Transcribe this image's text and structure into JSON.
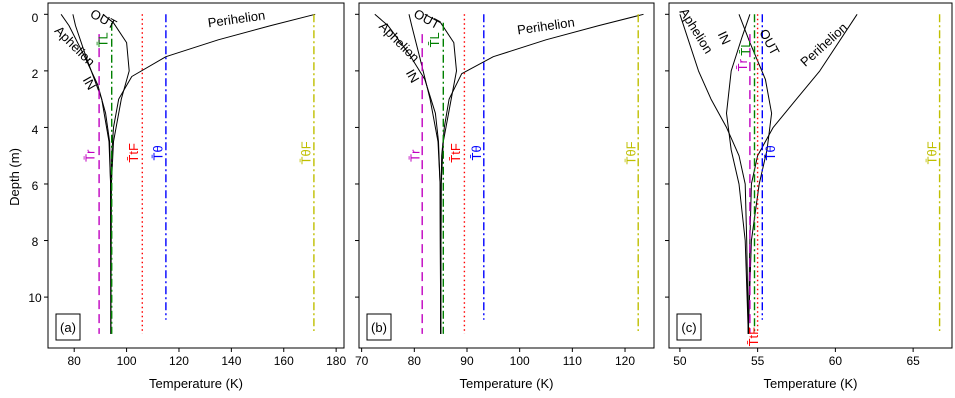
{
  "figure": {
    "y_axis_label": "Depth (m)",
    "y_ticks": [
      "0",
      "2",
      "4",
      "6",
      "8",
      "10"
    ]
  },
  "colors": {
    "curve": "#000000",
    "tr": "#c000c0",
    "tL": "#008000",
    "tF": "#ff0000",
    "theta": "#0000ff",
    "thetaF": "#bfbf00"
  },
  "chart_data": [
    {
      "type": "line",
      "panel_label": "(a)",
      "xlabel": "Temperature (K)",
      "ylabel": "Depth (m)",
      "xlim": [
        70,
        183
      ],
      "ylim": [
        11.8,
        -0.4
      ],
      "y_inverted": true,
      "x_ticks": [
        80,
        100,
        120,
        140,
        160,
        180
      ],
      "y_ticks": [
        0,
        2,
        4,
        6,
        8,
        10
      ],
      "grid": false,
      "series": [
        {
          "name": "Perihelion",
          "style": "solid",
          "color": "#000000",
          "points": [
            [
              94.0,
              11.3
            ],
            [
              94.1,
              6.0
            ],
            [
              94.3,
              5.0
            ],
            [
              95.0,
              4.0
            ],
            [
              97.0,
              3.0
            ],
            [
              102.0,
              2.2
            ],
            [
              115.0,
              1.5
            ],
            [
              135.0,
              0.9
            ],
            [
              155.0,
              0.4
            ],
            [
              172.0,
              0.0
            ]
          ]
        },
        {
          "name": "Aphelion",
          "style": "solid",
          "color": "#000000",
          "points": [
            [
              94.0,
              11.3
            ],
            [
              93.9,
              6.0
            ],
            [
              93.5,
              4.5
            ],
            [
              92.0,
              3.5
            ],
            [
              89.0,
              2.5
            ],
            [
              84.0,
              1.5
            ],
            [
              78.0,
              0.4
            ],
            [
              75.0,
              0.0
            ]
          ]
        },
        {
          "name": "OUT",
          "style": "solid",
          "color": "#000000",
          "points": [
            [
              94.0,
              11.3
            ],
            [
              94.2,
              6.0
            ],
            [
              95.0,
              4.5
            ],
            [
              98.0,
              3.0
            ],
            [
              101.0,
              2.0
            ],
            [
              100.0,
              1.0
            ],
            [
              95.0,
              0.3
            ],
            [
              91.0,
              0.0
            ]
          ]
        },
        {
          "name": "IN",
          "style": "solid",
          "color": "#000000",
          "points": [
            [
              94.0,
              11.3
            ],
            [
              93.9,
              6.0
            ],
            [
              93.3,
              4.5
            ],
            [
              90.5,
              3.0
            ],
            [
              84.5,
              1.5
            ],
            [
              80.5,
              0.4
            ],
            [
              79.5,
              0.0
            ]
          ]
        },
        {
          "name": "T̄r",
          "style": "dashed",
          "color": "#c000c0",
          "points": [
            [
              89.5,
              0.7
            ],
            [
              89.5,
              11.3
            ]
          ]
        },
        {
          "name": "T̄L",
          "style": "dashdot",
          "color": "#008000",
          "points": [
            [
              94.3,
              0.3
            ],
            [
              94.3,
              11.3
            ]
          ]
        },
        {
          "name": "T̄tF",
          "style": "dotted",
          "color": "#ff0000",
          "points": [
            [
              106.0,
              0.0
            ],
            [
              106.0,
              11.3
            ]
          ]
        },
        {
          "name": "T̄θ",
          "style": "dashdot",
          "color": "#0000ff",
          "points": [
            [
              115.0,
              0.0
            ],
            [
              115.0,
              10.8
            ]
          ]
        },
        {
          "name": "T̄θF",
          "style": "dashdot",
          "color": "#bfbf00",
          "points": [
            [
              171.5,
              0.0
            ],
            [
              171.5,
              11.2
            ]
          ]
        }
      ],
      "annotations": [
        {
          "text": "OUT",
          "x": 91,
          "y": 0.2,
          "rotate": 28
        },
        {
          "text": "Aphelion",
          "x": 80,
          "y": 1.15,
          "rotate": 45
        },
        {
          "text": "Perihelion",
          "x": 142,
          "y": 0.2,
          "rotate": -8
        },
        {
          "text": "IN",
          "x": 85.5,
          "y": 2.45,
          "rotate": 60
        },
        {
          "text": "T̄L",
          "x": 91.5,
          "y": 0.9,
          "rotate": -90,
          "color": "#008000"
        },
        {
          "text": "T̄r",
          "x": 86.5,
          "y": 5.0,
          "rotate": -90,
          "color": "#c000c0"
        },
        {
          "text": "T̄tF",
          "x": 103,
          "y": 4.9,
          "rotate": -90,
          "color": "#ff0000"
        },
        {
          "text": "T̄θ",
          "x": 112.5,
          "y": 4.9,
          "rotate": -90,
          "color": "#0000ff"
        },
        {
          "text": "T̄θF",
          "x": 169,
          "y": 4.9,
          "rotate": -90,
          "color": "#bfbf00"
        }
      ]
    },
    {
      "type": "line",
      "panel_label": "(b)",
      "xlabel": "Temperature (K)",
      "ylabel": "",
      "xlim": [
        69.5,
        125.5
      ],
      "ylim": [
        11.8,
        -0.4
      ],
      "y_inverted": true,
      "x_ticks": [
        70,
        80,
        90,
        100,
        110,
        120
      ],
      "y_ticks": [
        0,
        2,
        4,
        6,
        8,
        10
      ],
      "grid": false,
      "series": [
        {
          "name": "Perihelion",
          "style": "solid",
          "color": "#000000",
          "points": [
            [
              85.0,
              11.3
            ],
            [
              85.1,
              6.0
            ],
            [
              85.2,
              5.0
            ],
            [
              85.7,
              4.0
            ],
            [
              86.6,
              3.0
            ],
            [
              89.0,
              2.1
            ],
            [
              95.0,
              1.5
            ],
            [
              105.0,
              0.9
            ],
            [
              115.0,
              0.4
            ],
            [
              123.5,
              0.0
            ]
          ]
        },
        {
          "name": "Aphelion",
          "style": "solid",
          "color": "#000000",
          "points": [
            [
              85.0,
              11.3
            ],
            [
              84.9,
              6.0
            ],
            [
              84.6,
              4.5
            ],
            [
              84.0,
              3.5
            ],
            [
              82.0,
              2.3
            ],
            [
              79.0,
              1.4
            ],
            [
              75.0,
              0.4
            ],
            [
              72.5,
              0.0
            ]
          ]
        },
        {
          "name": "OUT",
          "style": "solid",
          "color": "#000000",
          "points": [
            [
              85.0,
              11.3
            ],
            [
              85.1,
              6.0
            ],
            [
              85.5,
              4.5
            ],
            [
              87.0,
              3.0
            ],
            [
              88.0,
              2.0
            ],
            [
              87.5,
              1.0
            ],
            [
              85.0,
              0.3
            ],
            [
              82.0,
              0.0
            ]
          ]
        },
        {
          "name": "IN",
          "style": "solid",
          "color": "#000000",
          "points": [
            [
              85.0,
              11.3
            ],
            [
              84.9,
              6.0
            ],
            [
              84.5,
              4.5
            ],
            [
              83.0,
              3.0
            ],
            [
              81.0,
              1.5
            ],
            [
              79.5,
              0.4
            ],
            [
              79.0,
              0.0
            ]
          ]
        },
        {
          "name": "T̄r",
          "style": "dashed",
          "color": "#c000c0",
          "points": [
            [
              81.5,
              0.7
            ],
            [
              81.5,
              11.3
            ]
          ]
        },
        {
          "name": "T̄L",
          "style": "dashdot",
          "color": "#008000",
          "points": [
            [
              85.5,
              0.3
            ],
            [
              85.5,
              11.3
            ]
          ]
        },
        {
          "name": "T̄tF",
          "style": "dotted",
          "color": "#ff0000",
          "points": [
            [
              89.5,
              0.0
            ],
            [
              89.5,
              11.3
            ]
          ]
        },
        {
          "name": "T̄θ",
          "style": "dashdot",
          "color": "#0000ff",
          "points": [
            [
              93.2,
              0.0
            ],
            [
              93.2,
              10.8
            ]
          ]
        },
        {
          "name": "T̄θF",
          "style": "dashdot",
          "color": "#bfbf00",
          "points": [
            [
              122.5,
              0.0
            ],
            [
              122.5,
              11.2
            ]
          ]
        }
      ],
      "annotations": [
        {
          "text": "OUT",
          "x": 82.3,
          "y": 0.2,
          "rotate": 28
        },
        {
          "text": "Aphelion",
          "x": 77,
          "y": 1.0,
          "rotate": 45
        },
        {
          "text": "Perihelion",
          "x": 105,
          "y": 0.45,
          "rotate": -8
        },
        {
          "text": "IN",
          "x": 79.5,
          "y": 2.2,
          "rotate": 60
        },
        {
          "text": "T̄L",
          "x": 84,
          "y": 0.9,
          "rotate": -90,
          "color": "#008000"
        },
        {
          "text": "T̄r",
          "x": 80.3,
          "y": 5.0,
          "rotate": -90,
          "color": "#c000c0"
        },
        {
          "text": "T̄tF",
          "x": 88,
          "y": 4.9,
          "rotate": -90,
          "color": "#ff0000"
        },
        {
          "text": "T̄θ",
          "x": 92,
          "y": 4.9,
          "rotate": -90,
          "color": "#0000ff"
        },
        {
          "text": "T̄θF",
          "x": 121.3,
          "y": 4.9,
          "rotate": -90,
          "color": "#bfbf00"
        }
      ]
    },
    {
      "type": "line",
      "panel_label": "(c)",
      "xlabel": "Temperature (K)",
      "ylabel": "",
      "xlim": [
        49.3,
        67.5
      ],
      "ylim": [
        11.8,
        -0.4
      ],
      "y_inverted": true,
      "x_ticks": [
        50,
        55,
        60,
        65
      ],
      "y_ticks": [
        0,
        2,
        4,
        6,
        8,
        10
      ],
      "grid": false,
      "series": [
        {
          "name": "Perihelion",
          "style": "solid",
          "color": "#000000",
          "points": [
            [
              54.4,
              11.3
            ],
            [
              54.5,
              8.0
            ],
            [
              54.6,
              6.0
            ],
            [
              55.0,
              5.0
            ],
            [
              56.0,
              4.0
            ],
            [
              57.5,
              3.0
            ],
            [
              59.0,
              2.0
            ],
            [
              61.4,
              0.0
            ]
          ]
        },
        {
          "name": "Aphelion",
          "style": "solid",
          "color": "#000000",
          "points": [
            [
              54.4,
              11.3
            ],
            [
              54.3,
              8.0
            ],
            [
              54.2,
              6.0
            ],
            [
              53.8,
              5.0
            ],
            [
              53.0,
              4.0
            ],
            [
              52.0,
              3.0
            ],
            [
              51.2,
              2.0
            ],
            [
              50.0,
              0.0
            ]
          ]
        },
        {
          "name": "OUT",
          "style": "solid",
          "color": "#000000",
          "points": [
            [
              54.4,
              11.3
            ],
            [
              54.6,
              8.0
            ],
            [
              55.1,
              6.0
            ],
            [
              55.6,
              4.8
            ],
            [
              55.9,
              3.5
            ],
            [
              55.5,
              2.3
            ],
            [
              54.5,
              1.0
            ],
            [
              53.8,
              0.0
            ]
          ]
        },
        {
          "name": "IN",
          "style": "solid",
          "color": "#000000",
          "points": [
            [
              54.4,
              11.3
            ],
            [
              54.2,
              8.0
            ],
            [
              53.8,
              6.0
            ],
            [
              53.3,
              4.8
            ],
            [
              53.0,
              3.5
            ],
            [
              53.3,
              2.0
            ],
            [
              54.0,
              0.8
            ],
            [
              54.5,
              0.0
            ]
          ]
        },
        {
          "name": "T̄r",
          "style": "dashed",
          "color": "#c000c0",
          "points": [
            [
              54.5,
              0.7
            ],
            [
              54.5,
              11.3
            ]
          ]
        },
        {
          "name": "T̄L",
          "style": "dashdot",
          "color": "#008000",
          "points": [
            [
              54.8,
              0.0
            ],
            [
              54.8,
              11.3
            ]
          ]
        },
        {
          "name": "T̄tF",
          "style": "dotted",
          "color": "#ff0000",
          "points": [
            [
              55.0,
              0.0
            ],
            [
              55.0,
              11.3
            ]
          ]
        },
        {
          "name": "T̄θ",
          "style": "dashdot",
          "color": "#0000ff",
          "points": [
            [
              55.3,
              0.0
            ],
            [
              55.3,
              10.8
            ]
          ]
        },
        {
          "name": "T̄θF",
          "style": "dashdot",
          "color": "#bfbf00",
          "points": [
            [
              66.7,
              0.0
            ],
            [
              66.7,
              11.2
            ]
          ]
        }
      ],
      "annotations": [
        {
          "text": "Aphelion",
          "x": 51.0,
          "y": 0.6,
          "rotate": 58
        },
        {
          "text": "IN",
          "x": 52.8,
          "y": 0.85,
          "rotate": 65
        },
        {
          "text": "OUT",
          "x": 55.7,
          "y": 1.0,
          "rotate": 62
        },
        {
          "text": "Perihelion",
          "x": 59.3,
          "y": 1.1,
          "rotate": -42
        },
        {
          "text": "T̄L",
          "x": 54.3,
          "y": 1.2,
          "rotate": -90,
          "color": "#008000"
        },
        {
          "text": "T̄r",
          "x": 54.1,
          "y": 1.8,
          "rotate": -90,
          "color": "#c000c0"
        },
        {
          "text": "T̄θ",
          "x": 55.9,
          "y": 4.9,
          "rotate": -90,
          "color": "#0000ff"
        },
        {
          "text": "T̄tF",
          "x": 54.8,
          "y": 11.4,
          "rotate": -90,
          "color": "#ff0000"
        },
        {
          "text": "T̄θF",
          "x": 66.3,
          "y": 4.9,
          "rotate": -90,
          "color": "#bfbf00"
        }
      ]
    }
  ]
}
